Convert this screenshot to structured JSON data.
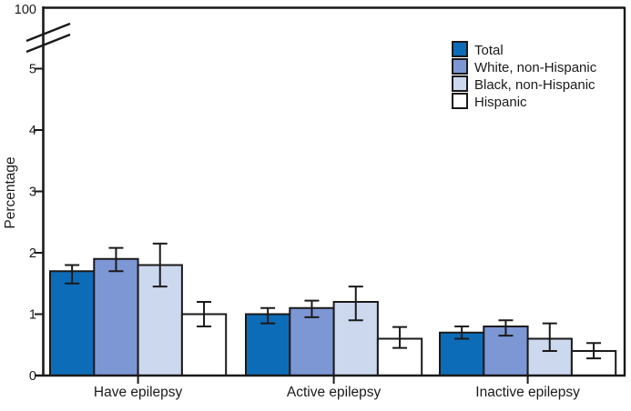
{
  "chart_data": {
    "type": "bar",
    "title": "",
    "xlabel": "",
    "ylabel": "Percentage",
    "categories": [
      "Have epilepsy",
      "Active epilepsy",
      "Inactive epilepsy"
    ],
    "series": [
      {
        "name": "Total",
        "color": "#0d6cb7",
        "values": [
          1.7,
          1.0,
          0.7
        ],
        "ci_low": [
          1.5,
          0.85,
          0.6
        ],
        "ci_high": [
          1.8,
          1.1,
          0.8
        ]
      },
      {
        "name": "White, non-Hispanic",
        "color": "#7d97d5",
        "values": [
          1.9,
          1.1,
          0.8
        ],
        "ci_low": [
          1.7,
          0.95,
          0.65
        ],
        "ci_high": [
          2.08,
          1.22,
          0.9
        ]
      },
      {
        "name": "Black, non-Hispanic",
        "color": "#ccd8ee",
        "values": [
          1.8,
          1.2,
          0.6
        ],
        "ci_low": [
          1.45,
          0.9,
          0.4
        ],
        "ci_high": [
          2.15,
          1.45,
          0.85
        ]
      },
      {
        "name": "Hispanic",
        "color": "#ffffff",
        "values": [
          1.0,
          0.6,
          0.4
        ],
        "ci_low": [
          0.8,
          0.45,
          0.28
        ],
        "ci_high": [
          1.2,
          0.79,
          0.53
        ]
      }
    ],
    "y_ticks": [
      0,
      1,
      2,
      3,
      4,
      5
    ],
    "axis_break": true,
    "y_break_top_label": "100",
    "ylim_shown": [
      0,
      5
    ],
    "grid": false,
    "error_bars": true,
    "legend_position": "top-right",
    "ink_color": "#1a1a1a",
    "background_color": "#ffffff"
  }
}
